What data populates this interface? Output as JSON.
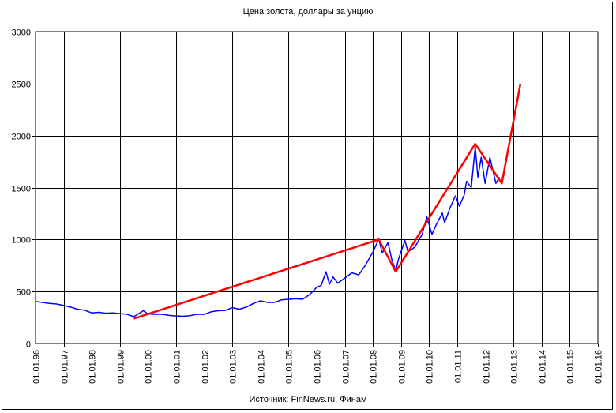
{
  "chart_data": {
    "type": "line",
    "title": "Цена золота, доллары за унцию",
    "source": "Источник: FinNews.ru, Финам",
    "xlabel": "",
    "ylabel": "",
    "xlim": [
      "1996-01-01",
      "2016-01-01"
    ],
    "ylim": [
      0,
      3000
    ],
    "y_ticks": [
      0,
      500,
      1000,
      1500,
      2000,
      2500,
      3000
    ],
    "x_ticks": [
      {
        "date": "1996-01-01",
        "label": "01.01.96"
      },
      {
        "date": "1997-01-01",
        "label": "01.01.97"
      },
      {
        "date": "1998-01-01",
        "label": "01.01.98"
      },
      {
        "date": "1999-01-01",
        "label": "01.01.99"
      },
      {
        "date": "2000-01-01",
        "label": "01.01.00"
      },
      {
        "date": "2001-01-01",
        "label": "01.01.01"
      },
      {
        "date": "2002-01-01",
        "label": "01.01.02"
      },
      {
        "date": "2003-01-01",
        "label": "01.01.03"
      },
      {
        "date": "2004-01-01",
        "label": "01.01.04"
      },
      {
        "date": "2005-01-01",
        "label": "01.01.05"
      },
      {
        "date": "2006-01-01",
        "label": "01.01.06"
      },
      {
        "date": "2007-01-01",
        "label": "01.01.07"
      },
      {
        "date": "2008-01-01",
        "label": "01.01.08"
      },
      {
        "date": "2009-01-01",
        "label": "01.01.09"
      },
      {
        "date": "2010-01-01",
        "label": "01.01.10"
      },
      {
        "date": "2011-01-01",
        "label": "01.01.11"
      },
      {
        "date": "2012-01-01",
        "label": "01.01.12"
      },
      {
        "date": "2013-01-01",
        "label": "01.01.13"
      },
      {
        "date": "2014-01-01",
        "label": "01.01.14"
      },
      {
        "date": "2015-01-01",
        "label": "01.01.15"
      },
      {
        "date": "2016-01-01",
        "label": "01.01.16"
      }
    ],
    "grid": true,
    "series": [
      {
        "color": "#0000ff",
        "points": [
          [
            "1996-01-01",
            405
          ],
          [
            "1996-04-01",
            395
          ],
          [
            "1996-07-01",
            385
          ],
          [
            "1996-10-01",
            380
          ],
          [
            "1997-01-01",
            365
          ],
          [
            "1997-04-01",
            350
          ],
          [
            "1997-07-01",
            330
          ],
          [
            "1997-10-01",
            320
          ],
          [
            "1998-01-01",
            295
          ],
          [
            "1998-04-01",
            300
          ],
          [
            "1998-07-01",
            292
          ],
          [
            "1998-10-01",
            295
          ],
          [
            "1999-01-01",
            288
          ],
          [
            "1999-04-01",
            282
          ],
          [
            "1999-07-01",
            258
          ],
          [
            "1999-10-01",
            300
          ],
          [
            "1999-11-01",
            315
          ],
          [
            "2000-01-01",
            285
          ],
          [
            "2000-04-01",
            280
          ],
          [
            "2000-07-01",
            282
          ],
          [
            "2000-10-01",
            270
          ],
          [
            "2001-01-01",
            265
          ],
          [
            "2001-04-01",
            262
          ],
          [
            "2001-07-01",
            268
          ],
          [
            "2001-10-01",
            282
          ],
          [
            "2002-01-01",
            280
          ],
          [
            "2002-04-01",
            305
          ],
          [
            "2002-07-01",
            315
          ],
          [
            "2002-10-01",
            318
          ],
          [
            "2003-01-01",
            345
          ],
          [
            "2003-04-01",
            330
          ],
          [
            "2003-07-01",
            350
          ],
          [
            "2003-10-01",
            385
          ],
          [
            "2004-01-01",
            410
          ],
          [
            "2004-04-01",
            395
          ],
          [
            "2004-07-01",
            395
          ],
          [
            "2004-10-01",
            420
          ],
          [
            "2005-01-01",
            425
          ],
          [
            "2005-04-01",
            430
          ],
          [
            "2005-07-01",
            425
          ],
          [
            "2005-10-01",
            470
          ],
          [
            "2006-01-01",
            540
          ],
          [
            "2006-03-01",
            560
          ],
          [
            "2006-05-01",
            690
          ],
          [
            "2006-06-15",
            570
          ],
          [
            "2006-08-01",
            640
          ],
          [
            "2006-10-01",
            580
          ],
          [
            "2007-01-01",
            630
          ],
          [
            "2007-04-01",
            680
          ],
          [
            "2007-07-01",
            660
          ],
          [
            "2007-10-01",
            760
          ],
          [
            "2008-01-01",
            880
          ],
          [
            "2008-03-17",
            1005
          ],
          [
            "2008-05-01",
            870
          ],
          [
            "2008-07-15",
            970
          ],
          [
            "2008-09-01",
            810
          ],
          [
            "2008-10-24",
            700
          ],
          [
            "2008-12-01",
            820
          ],
          [
            "2009-02-20",
            990
          ],
          [
            "2009-04-01",
            880
          ],
          [
            "2009-07-01",
            930
          ],
          [
            "2009-10-01",
            1050
          ],
          [
            "2009-12-02",
            1220
          ],
          [
            "2010-02-05",
            1050
          ],
          [
            "2010-04-01",
            1140
          ],
          [
            "2010-06-20",
            1255
          ],
          [
            "2010-07-20",
            1160
          ],
          [
            "2010-10-01",
            1310
          ],
          [
            "2010-12-07",
            1420
          ],
          [
            "2011-01-28",
            1320
          ],
          [
            "2011-04-01",
            1430
          ],
          [
            "2011-05-01",
            1560
          ],
          [
            "2011-07-01",
            1500
          ],
          [
            "2011-08-22",
            1890
          ],
          [
            "2011-09-26",
            1600
          ],
          [
            "2011-11-08",
            1790
          ],
          [
            "2011-12-29",
            1540
          ],
          [
            "2012-02-28",
            1790
          ],
          [
            "2012-05-16",
            1540
          ],
          [
            "2012-07-01",
            1600
          ]
        ]
      },
      {
        "color": "#ff0000",
        "points": [
          [
            "1999-07-01",
            240
          ],
          [
            "2008-03-17",
            1000
          ],
          [
            "2008-10-24",
            690
          ],
          [
            "2011-08-22",
            1920
          ],
          [
            "2012-08-01",
            1540
          ],
          [
            "2013-04-01",
            2500
          ]
        ]
      }
    ]
  }
}
